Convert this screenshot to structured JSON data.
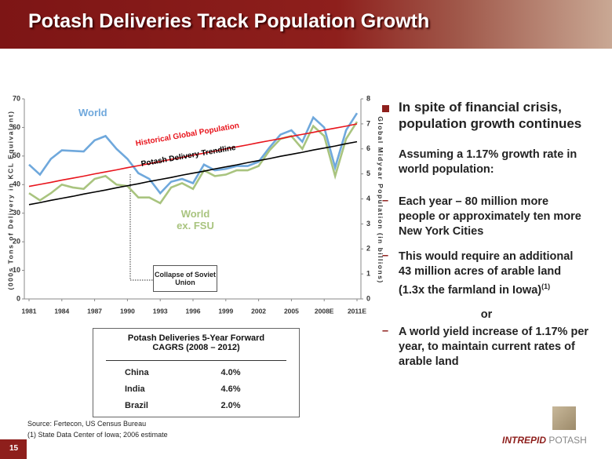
{
  "slide": {
    "title": "Potash Deliveries Track Population Growth",
    "page_number": "15"
  },
  "chart_data": {
    "type": "line",
    "categories": [
      "1981",
      null,
      null,
      "1984",
      null,
      null,
      "1987",
      null,
      null,
      "1990",
      null,
      null,
      "1993",
      null,
      null,
      "1996",
      null,
      null,
      "1999",
      null,
      null,
      "2002",
      null,
      null,
      "2005",
      null,
      null,
      "2008E",
      null,
      null,
      "2011E"
    ],
    "series": [
      {
        "name": "World",
        "color": "#6fa8dc",
        "values": [
          47,
          43.5,
          49,
          52,
          51.8,
          51.6,
          55.5,
          57,
          52.5,
          49,
          44,
          42,
          37,
          41,
          42,
          40.5,
          47,
          45,
          45.5,
          46.5,
          46.5,
          48,
          53,
          57.5,
          59,
          55,
          63.5,
          60,
          46,
          59,
          65
        ]
      },
      {
        "name": "World ex. FSU",
        "color": "#a9c47f",
        "values": [
          37,
          34.5,
          37,
          40,
          39,
          38.5,
          42,
          43,
          40,
          39.5,
          35.5,
          35.5,
          33.5,
          39,
          40.5,
          38.5,
          45,
          43,
          43.5,
          45,
          45,
          46.5,
          52,
          56,
          57,
          52.5,
          60.5,
          57,
          43,
          56,
          62
        ]
      },
      {
        "name": "Potash Delivery Trendline",
        "color": "#000000",
        "values": [
          33,
          33.7,
          34.5,
          35.2,
          35.9,
          36.7,
          37.4,
          38.1,
          38.9,
          39.6,
          40.3,
          41.1,
          41.8,
          42.5,
          43.3,
          44,
          44.7,
          45.5,
          46.2,
          46.9,
          47.7,
          48.4,
          49.1,
          49.9,
          50.6,
          51.3,
          52.1,
          52.8,
          53.5,
          54.3,
          55
        ]
      },
      {
        "name": "Historical Global Population",
        "color": "#e8141c",
        "axis": "y2",
        "values": [
          4.5,
          4.58,
          4.66,
          4.75,
          4.83,
          4.91,
          5.0,
          5.08,
          5.16,
          5.25,
          5.33,
          5.41,
          5.5,
          5.58,
          5.66,
          5.75,
          5.83,
          5.91,
          6.0,
          6.08,
          6.16,
          6.25,
          6.33,
          6.41,
          6.5,
          6.58,
          6.66,
          6.75,
          6.83,
          6.91,
          7.0
        ]
      }
    ],
    "y_label": "(000s Tons of Delivery in KCL Equivalent)",
    "y2_label": "Global Midyear Population (in billions)",
    "ylim": [
      0,
      70
    ],
    "yticks": [
      0,
      10,
      20,
      30,
      40,
      50,
      60,
      70
    ],
    "y2lim": [
      0,
      8
    ],
    "y2ticks": [
      0,
      1,
      2,
      3,
      4,
      5,
      6,
      7,
      8
    ],
    "annotation": "Collapse of Soviet Union"
  },
  "table": {
    "title": [
      "Potash Deliveries  5-Year Forward",
      "CAGRS (2008 – 2012)"
    ],
    "rows": [
      [
        "China",
        "4.0%"
      ],
      [
        "India",
        "4.6%"
      ],
      [
        "Brazil",
        "2.0%"
      ]
    ]
  },
  "bullets": {
    "main": "In spite of financial crisis, population growth continues",
    "sub": "Assuming a 1.17% growth rate in world population:",
    "items": [
      {
        "text": "Each year – 80 million more people or approximately ten more New York Cities"
      },
      {
        "text": "This would require an additional 43 million acres of arable land (1.3x the farmland in Iowa)",
        "note": "(1)"
      },
      {
        "text": "A world yield increase of 1.17% per year, to maintain current rates of arable land"
      }
    ],
    "joiner": "or"
  },
  "sources": [
    "Source:  Fertecon, US Census Bureau",
    "(1) State Data Center of Iowa; 2006 estimate"
  ],
  "logo": [
    "INTREPID",
    "POTASH"
  ]
}
